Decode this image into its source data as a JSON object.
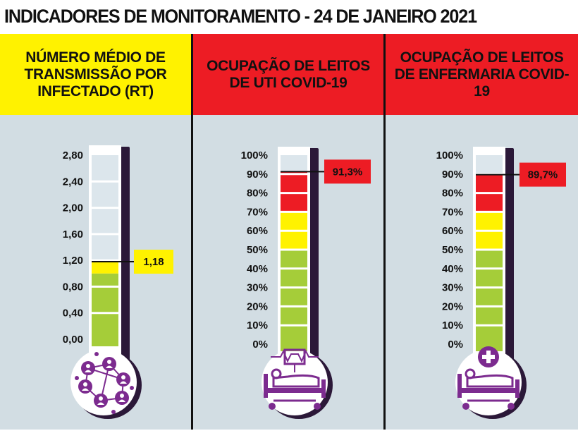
{
  "title": "INDICADORES DE MONITORAMENTO - 24 DE JANEIRO 2021",
  "colors": {
    "yellow": "#fff200",
    "red": "#ed1c24",
    "green": "#a5cd39",
    "panel_bg": "#d2dde3",
    "purple": "#7c2b8f",
    "dark_purple": "#2b1838"
  },
  "panels": [
    {
      "header": "NÚMERO MÉDIO DE TRANSMISSÃO POR INFECTADO (RT)",
      "header_color": "yellow",
      "icon": "network-people-icon"
    },
    {
      "header": "OCUPAÇÃO DE LEITOS DE UTI COVID-19",
      "header_color": "red",
      "icon": "icu-bed-monitor-icon"
    },
    {
      "header": "OCUPAÇÃO DE LEITOS DE ENFERMARIA COVID-19",
      "header_color": "red",
      "icon": "hospital-bed-cross-icon"
    }
  ],
  "chart_data": [
    {
      "type": "bar",
      "title": "NÚMERO MÉDIO DE TRANSMISSÃO POR INFECTADO (RT)",
      "tick_labels": [
        "2,80",
        "2,40",
        "2,00",
        "1,60",
        "1,20",
        "0,80",
        "0,40",
        "0,00"
      ],
      "ticks": [
        2.8,
        2.4,
        2.0,
        1.6,
        1.2,
        0.8,
        0.4,
        0.0
      ],
      "ylim": [
        0,
        2.8
      ],
      "value": 1.18,
      "value_label": "1,18",
      "bands": [
        {
          "from": 0.0,
          "to": 1.0,
          "color": "green"
        },
        {
          "from": 1.0,
          "to": 1.18,
          "color": "yellow"
        }
      ]
    },
    {
      "type": "bar",
      "title": "OCUPAÇÃO DE LEITOS DE UTI COVID-19",
      "tick_labels": [
        "100%",
        "90%",
        "80%",
        "70%",
        "60%",
        "50%",
        "40%",
        "30%",
        "20%",
        "10%",
        "0%"
      ],
      "ticks": [
        100,
        90,
        80,
        70,
        60,
        50,
        40,
        30,
        20,
        10,
        0
      ],
      "ylim": [
        0,
        100
      ],
      "value": 91.3,
      "value_label": "91,3%",
      "bands": [
        {
          "from": 0,
          "to": 50,
          "color": "green"
        },
        {
          "from": 50,
          "to": 70,
          "color": "yellow"
        },
        {
          "from": 70,
          "to": 91.3,
          "color": "red"
        }
      ]
    },
    {
      "type": "bar",
      "title": "OCUPAÇÃO DE LEITOS DE ENFERMARIA COVID-19",
      "tick_labels": [
        "100%",
        "90%",
        "80%",
        "70%",
        "60%",
        "50%",
        "40%",
        "30%",
        "20%",
        "10%",
        "0%"
      ],
      "ticks": [
        100,
        90,
        80,
        70,
        60,
        50,
        40,
        30,
        20,
        10,
        0
      ],
      "ylim": [
        0,
        100
      ],
      "value": 89.7,
      "value_label": "89,7%",
      "bands": [
        {
          "from": 0,
          "to": 50,
          "color": "green"
        },
        {
          "from": 50,
          "to": 70,
          "color": "yellow"
        },
        {
          "from": 70,
          "to": 89.7,
          "color": "red"
        }
      ]
    }
  ]
}
